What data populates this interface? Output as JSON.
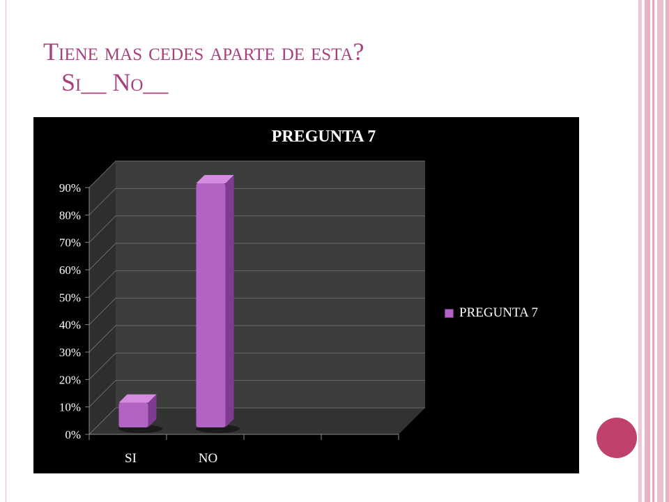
{
  "slide": {
    "title_line1": "Tiene mas cedes aparte de esta?",
    "title_line2": "Si__ No__"
  },
  "colors": {
    "bar_front": "#b363c4",
    "bar_side": "#7f3a91",
    "bar_top": "#d58ce0",
    "chart_background": "#000000",
    "wall": "#3d3d3d",
    "title": "#a7417e",
    "circle": "#c0426c"
  },
  "chart_data": {
    "type": "bar",
    "style": "3d-column",
    "title": "PREGUNTA 7",
    "categories": [
      "SI",
      "NO"
    ],
    "series": [
      {
        "name": "PREGUNTA 7",
        "values": [
          0.1,
          0.9
        ]
      }
    ],
    "y_ticks": [
      "0%",
      "10%",
      "20%",
      "30%",
      "40%",
      "50%",
      "60%",
      "70%",
      "80%",
      "90%"
    ],
    "ylim": [
      0,
      0.9
    ],
    "grid": true,
    "legend_position": "right"
  }
}
